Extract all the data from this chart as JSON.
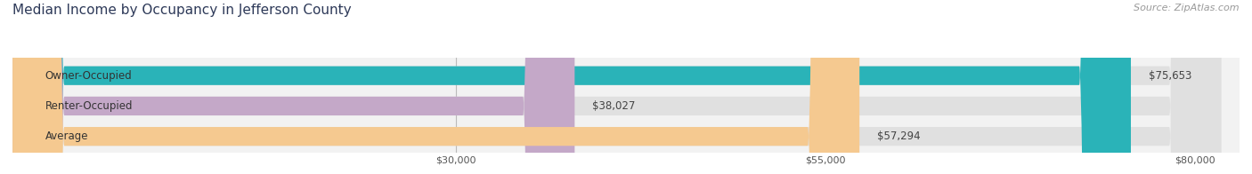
{
  "title": "Median Income by Occupancy in Jefferson County",
  "source": "Source: ZipAtlas.com",
  "categories": [
    "Owner-Occupied",
    "Renter-Occupied",
    "Average"
  ],
  "values": [
    75653,
    38027,
    57294
  ],
  "bar_colors": [
    "#2ab3b8",
    "#c4a8c8",
    "#f5c990"
  ],
  "label_texts": [
    "$75,653",
    "$38,027",
    "$57,294"
  ],
  "x_ticks": [
    30000,
    55000,
    80000
  ],
  "x_tick_labels": [
    "$30,000",
    "$55,000",
    "$80,000"
  ],
  "xlim_max": 83000,
  "background_color": "#f2f2f2",
  "bar_bg_color": "#e0e0e0",
  "title_color": "#2e3a59",
  "source_color": "#999999",
  "title_fontsize": 11,
  "source_fontsize": 8,
  "label_fontsize": 8.5,
  "cat_fontsize": 8.5,
  "tick_fontsize": 8
}
